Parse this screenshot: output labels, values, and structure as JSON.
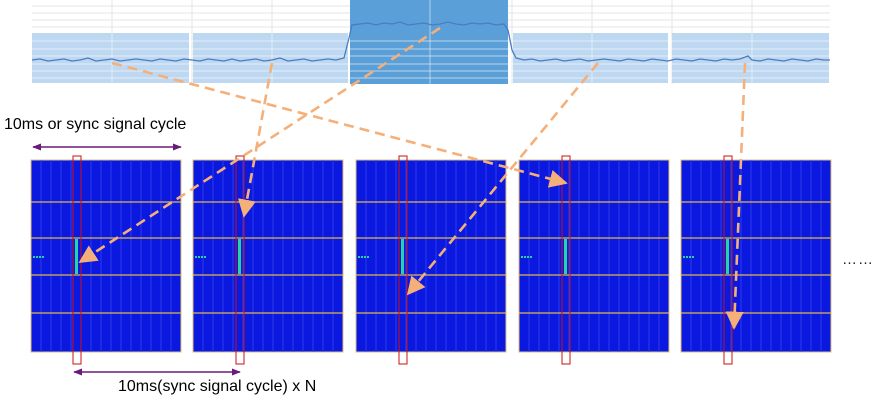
{
  "labels": {
    "top_dimension": "10ms or sync signal cycle",
    "bottom_dimension": "10ms(sync signal cycle) x N",
    "continuation": "……"
  },
  "colors": {
    "frame_fill": "#0b18e0",
    "frame_border": "#d8c080",
    "frame_hline": "#e2b64a",
    "frame_vline": "#3a49ee",
    "selection_box": "#cc1010",
    "signal_bar": "#22d4a8",
    "arrow": "#f5b07a",
    "dimension_line": "#6a1a7a",
    "top_band_light": "#bcd6f0",
    "top_band_highlight": "#5b9fd8",
    "waveform": "#4a7cc0"
  },
  "icons": {
    "arrows": "dashed-arrow-icon",
    "dimension": "double-headed-arrow-icon"
  }
}
